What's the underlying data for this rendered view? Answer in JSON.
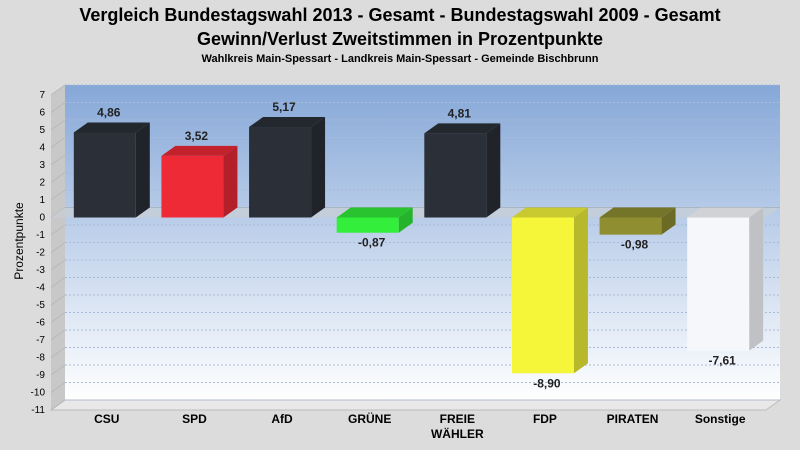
{
  "title_line1": "Vergleich Bundestagswahl 2013 - Gesamt - Bundestagswahl 2009 - Gesamt",
  "title_line2": "Gewinn/Verlust Zweitstimmen in Prozentpunkte",
  "subtitle": "Wahlkreis Main-Spessart - Landkreis Main-Spessart - Gemeinde Bischbrunn",
  "chart_data": {
    "type": "bar",
    "ylabel": "Prozentpunkte",
    "ylim": [
      -11,
      7
    ],
    "yticks": [
      7,
      6,
      5,
      4,
      3,
      2,
      1,
      0,
      -1,
      -2,
      -3,
      -4,
      -5,
      -6,
      -7,
      -8,
      -9,
      -10,
      -11
    ],
    "categories": [
      {
        "label": [
          "CSU"
        ],
        "value": 4.86,
        "value_label": "4,86",
        "color": "#2b3038"
      },
      {
        "label": [
          "SPD"
        ],
        "value": 3.52,
        "value_label": "3,52",
        "color": "#ee2a36"
      },
      {
        "label": [
          "AfD"
        ],
        "value": 5.17,
        "value_label": "5,17",
        "color": "#2b3038"
      },
      {
        "label": [
          "GRÜNE"
        ],
        "value": -0.87,
        "value_label": "-0,87",
        "color": "#33ee3a"
      },
      {
        "label": [
          "FREIE",
          "WÄHLER"
        ],
        "value": 4.81,
        "value_label": "4,81",
        "color": "#2b3038"
      },
      {
        "label": [
          "FDP"
        ],
        "value": -8.9,
        "value_label": "-8,90",
        "color": "#f5f53a"
      },
      {
        "label": [
          "PIRATEN"
        ],
        "value": -0.98,
        "value_label": "-0,98",
        "color": "#8f8f32"
      },
      {
        "label": [
          "Sonstige"
        ],
        "value": -7.61,
        "value_label": "-7,61",
        "color": "#f6f7fb"
      }
    ]
  }
}
